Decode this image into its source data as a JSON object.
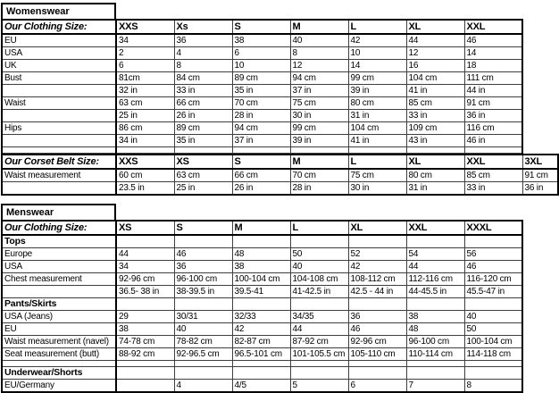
{
  "womenswear": {
    "title": "Womenswear",
    "clothing": {
      "header_label": "Our Clothing Size:",
      "sizes": [
        "XXS",
        "Xs",
        "S",
        "M",
        "L",
        "XL",
        "XXL"
      ],
      "rows": [
        {
          "kind": "data",
          "label": "EU",
          "values": [
            "34",
            "36",
            "38",
            "40",
            "42",
            "44",
            "46"
          ]
        },
        {
          "kind": "data",
          "label": "USA",
          "values": [
            "2",
            "4",
            "6",
            "8",
            "10",
            "12",
            "14"
          ]
        },
        {
          "kind": "data",
          "label": "UK",
          "values": [
            "6",
            "8",
            "10",
            "12",
            "14",
            "16",
            "18"
          ]
        },
        {
          "kind": "data",
          "label": "Bust",
          "values": [
            "81cm",
            "84 cm",
            "89 cm",
            "94 cm",
            "99 cm",
            "104 cm",
            "111 cm"
          ]
        },
        {
          "kind": "data",
          "label": "",
          "values": [
            "32 in",
            "33 in",
            "35 in",
            "37 in",
            "39 in",
            "41 in",
            "44 in"
          ]
        },
        {
          "kind": "data",
          "label": "Waist",
          "values": [
            "63 cm",
            "66 cm",
            "70 cm",
            "75 cm",
            "80 cm",
            "85 cm",
            "91 cm"
          ]
        },
        {
          "kind": "data",
          "label": "",
          "values": [
            "25 in",
            "26 in",
            "28 in",
            "30 in",
            "31 in",
            "33 in",
            "36 in"
          ]
        },
        {
          "kind": "data",
          "label": "Hips",
          "values": [
            "86 cm",
            "89 cm",
            "94 cm",
            "99 cm",
            "104 cm",
            "109 cm",
            "116 cm"
          ]
        },
        {
          "kind": "data",
          "label": "",
          "values": [
            "34 in",
            "35 in",
            "37 in",
            "39 in",
            "41 in",
            "43 in",
            "46 in"
          ]
        },
        {
          "kind": "spacer",
          "label": "",
          "values": [
            "",
            "",
            "",
            "",
            "",
            "",
            ""
          ]
        }
      ]
    },
    "corset": {
      "header_label": "Our Corset Belt Size:",
      "sizes": [
        "XXS",
        "XS",
        "S",
        "M",
        "L",
        "XL",
        "XXL",
        "3XL"
      ],
      "rows": [
        {
          "kind": "data",
          "label": "Waist measurement",
          "values": [
            "60 cm",
            "63 cm",
            "66 cm",
            "70 cm",
            "75 cm",
            "80 cm",
            "85 cm",
            "91 cm"
          ]
        },
        {
          "kind": "data",
          "label": "",
          "values": [
            "23.5 in",
            "25 in",
            "26 in",
            "28 in",
            "30 in",
            "31 in",
            "33 in",
            "36 in"
          ]
        }
      ]
    }
  },
  "menswear": {
    "title": "Menswear",
    "clothing": {
      "header_label": "Our Clothing Size:",
      "sizes": [
        "XS",
        "S",
        "M",
        "L",
        "XL",
        "XXL",
        "XXXL"
      ],
      "rows": [
        {
          "kind": "section",
          "label": "Tops",
          "values": [
            "",
            "",
            "",
            "",
            "",
            "",
            ""
          ]
        },
        {
          "kind": "data",
          "label": "Europe",
          "values": [
            "44",
            "46",
            "48",
            "50",
            "52",
            "54",
            "56"
          ]
        },
        {
          "kind": "data",
          "label": "USA",
          "values": [
            "34",
            "36",
            "38",
            "40",
            "42",
            "44",
            "46"
          ]
        },
        {
          "kind": "data",
          "label": "Chest measurement",
          "values": [
            "92-96 cm",
            "96-100 cm",
            "100-104 cm",
            "104-108 cm",
            "108-112 cm",
            "112-116 cm",
            "116-120 cm"
          ]
        },
        {
          "kind": "data",
          "label": "",
          "values": [
            "36.5- 38 in",
            "38-39.5 in",
            "39.5-41",
            "41-42.5 in",
            "42.5 - 44 in",
            "44-45.5 in",
            "45.5-47 in"
          ]
        },
        {
          "kind": "section",
          "label": "Pants/Skirts",
          "values": [
            "",
            "",
            "",
            "",
            "",
            "",
            ""
          ]
        },
        {
          "kind": "data",
          "label": "USA (Jeans)",
          "values": [
            "29",
            "30/31",
            "32/33",
            "34/35",
            "36",
            "38",
            "40"
          ]
        },
        {
          "kind": "data",
          "label": "EU",
          "values": [
            "38",
            "40",
            "42",
            "44",
            "46",
            "48",
            "50"
          ]
        },
        {
          "kind": "data",
          "label": "Waist measurement (navel)",
          "values": [
            "74-78 cm",
            "78-82 cm",
            "82-87 cm",
            "87-92 cm",
            "92-96 cm",
            "96-100 cm",
            "100-104 cm"
          ]
        },
        {
          "kind": "data",
          "label": "Seat measurement (butt)",
          "values": [
            "88-92 cm",
            "92-96.5 cm",
            "96.5-101 cm",
            "101-105.5 cm",
            "105-110 cm",
            "110-114 cm",
            "114-118 cm"
          ]
        },
        {
          "kind": "spacer",
          "label": "",
          "values": [
            "",
            "",
            "",
            "",
            "",
            "",
            ""
          ]
        },
        {
          "kind": "section",
          "label": "Underwear/Shorts",
          "values": [
            "",
            "",
            "",
            "",
            "",
            "",
            ""
          ]
        },
        {
          "kind": "data",
          "label": "EU/Germany",
          "values": [
            "",
            "4",
            "4/5",
            "5",
            "6",
            "7",
            "8"
          ]
        }
      ]
    }
  }
}
